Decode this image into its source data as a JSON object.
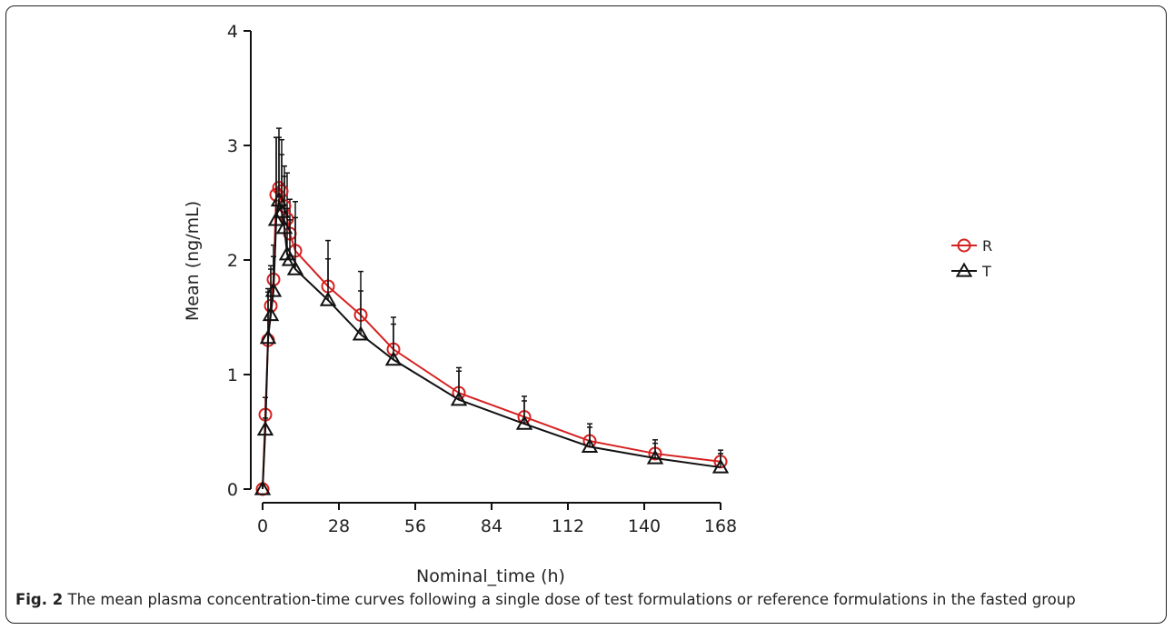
{
  "caption": {
    "label": "Fig. 2",
    "text": "The mean plasma concentration-time curves following a single dose of test formulations or reference formulations in the fasted group"
  },
  "chart_data": {
    "type": "line",
    "xlabel": "Nominal_time (h)",
    "ylabel": "Mean (ng/mL)",
    "xlim": [
      0,
      168
    ],
    "ylim": [
      0,
      4
    ],
    "xticks": [
      0,
      28,
      56,
      84,
      112,
      140,
      168
    ],
    "yticks": [
      0,
      1,
      2,
      3,
      4
    ],
    "x_tick_labels": [
      "0",
      "28",
      "56",
      "84",
      "112",
      "140",
      "168"
    ],
    "y_tick_labels": [
      "0",
      "1",
      "2",
      "3",
      "4"
    ],
    "legend_position": "right",
    "grid": false,
    "error_bars": true,
    "series": [
      {
        "name": "R",
        "color": "#d62020",
        "marker": "circle",
        "x": [
          0,
          1,
          2,
          3,
          4,
          5,
          6,
          7,
          8,
          9,
          10,
          12,
          24,
          36,
          48,
          72,
          96,
          120,
          144,
          168
        ],
        "y": [
          0,
          0.65,
          1.3,
          1.6,
          1.83,
          2.57,
          2.63,
          2.6,
          2.47,
          2.36,
          2.23,
          2.08,
          1.77,
          1.52,
          1.22,
          0.84,
          0.63,
          0.42,
          0.31,
          0.24
        ],
        "error": [
          0,
          0.15,
          0.45,
          0.35,
          0.3,
          0.5,
          0.52,
          0.45,
          0.35,
          0.4,
          0.3,
          0.43,
          0.4,
          0.38,
          0.28,
          0.22,
          0.18,
          0.15,
          0.12,
          0.1
        ]
      },
      {
        "name": "T",
        "color": "#111111",
        "marker": "triangle",
        "x": [
          0,
          1,
          2,
          3,
          4,
          5,
          6,
          7,
          8,
          9,
          10,
          12,
          24,
          36,
          48,
          72,
          96,
          120,
          144,
          168
        ],
        "y": [
          0,
          0.52,
          1.32,
          1.52,
          1.73,
          2.35,
          2.52,
          2.42,
          2.28,
          2.05,
          2.0,
          1.92,
          1.65,
          1.35,
          1.13,
          0.78,
          0.57,
          0.37,
          0.27,
          0.19
        ],
        "error": [
          0,
          0.1,
          0.4,
          0.4,
          0.3,
          0.72,
          0.55,
          0.5,
          0.45,
          0.4,
          0.35,
          0.45,
          0.36,
          0.38,
          0.31,
          0.25,
          0.2,
          0.17,
          0.13,
          0.12
        ]
      }
    ]
  }
}
